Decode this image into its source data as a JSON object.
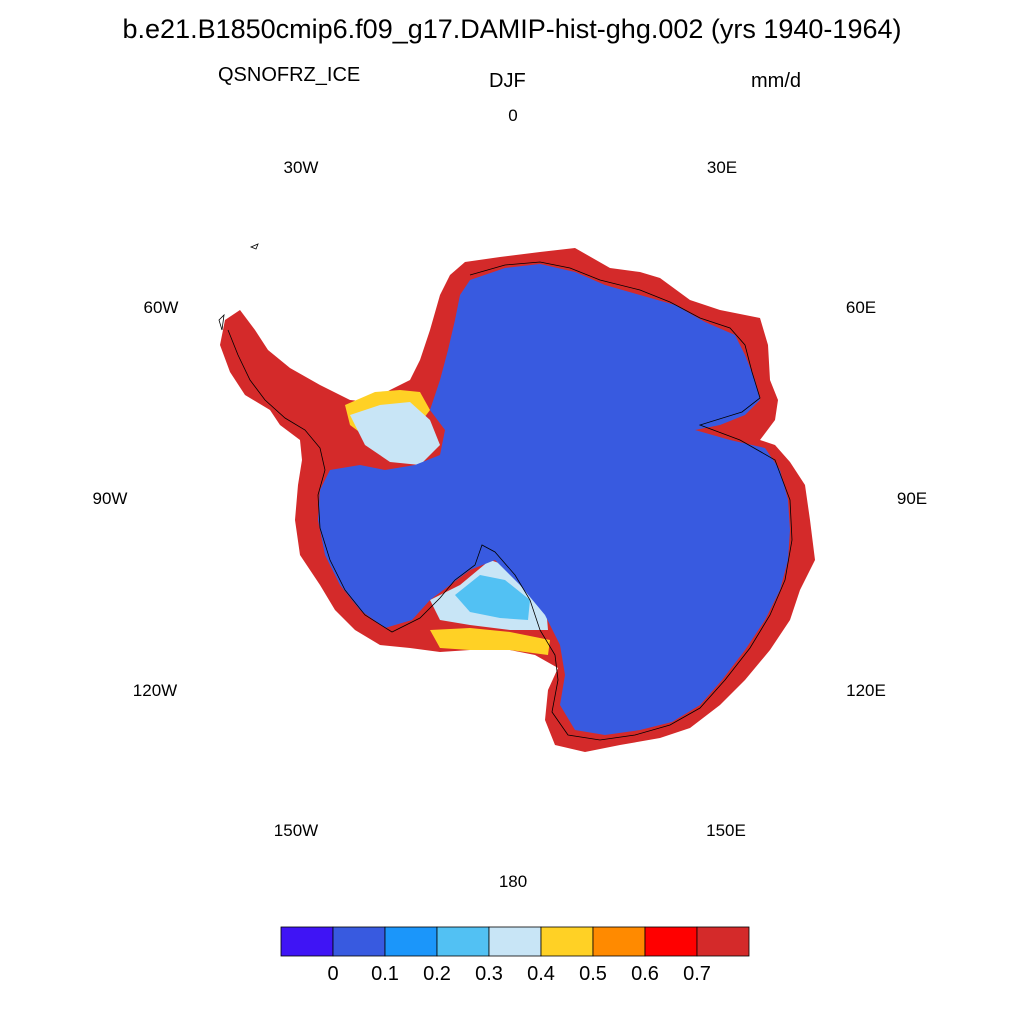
{
  "title": "b.e21.B1850cmip6.f09_g17.DAMIP-hist-ghg.002 (yrs 1940-1964)",
  "left_string": "QSNOFRZ_ICE",
  "center_string": "DJF",
  "right_string": "mm/d",
  "longitude_labels": {
    "lon_0": "0",
    "lon_30e": "30E",
    "lon_60e": "60E",
    "lon_90e": "90E",
    "lon_120e": "120E",
    "lon_150e": "150E",
    "lon_180": "180",
    "lon_150w": "150W",
    "lon_120w": "120W",
    "lon_90w": "90W",
    "lon_60w": "60W",
    "lon_30w": "30W"
  },
  "colorbar": {
    "colors": [
      "#3f14f5",
      "#385ae0",
      "#1b96fa",
      "#52c1f3",
      "#c8e5f6",
      "#ffd125",
      "#ff8a00",
      "#ff0000",
      "#d42a2a"
    ],
    "labels": [
      "0",
      "0.1",
      "0.2",
      "0.3",
      "0.4",
      "0.5",
      "0.6",
      "0.7"
    ]
  },
  "map_colors": {
    "interior": "#385ae0",
    "coast": "#d42a2a"
  }
}
